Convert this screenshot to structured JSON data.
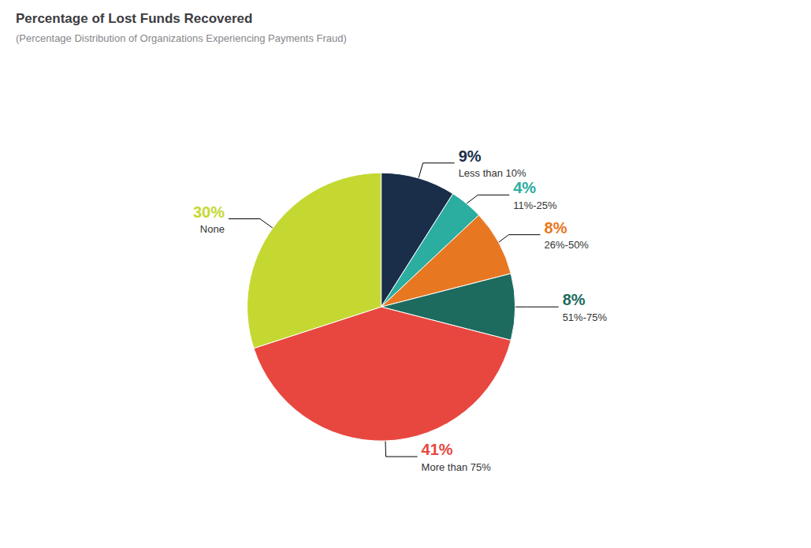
{
  "chart_data": {
    "type": "pie",
    "title": "Percentage of Lost Funds Recovered",
    "subtitle": "(Percentage Distribution of Organizations Experiencing Payments Fraud)",
    "categories": [
      "Less than 10%",
      "11%-25%",
      "26%-50%",
      "51%-75%",
      "More than 75%",
      "None"
    ],
    "values": [
      9,
      4,
      8,
      8,
      41,
      30
    ],
    "value_labels": [
      "9%",
      "4%",
      "8%",
      "8%",
      "41%",
      "30%"
    ],
    "colors": [
      "#1a2e4a",
      "#2bada0",
      "#e87722",
      "#1d6b5e",
      "#e8473f",
      "#c5d832"
    ],
    "data_labels": true
  }
}
